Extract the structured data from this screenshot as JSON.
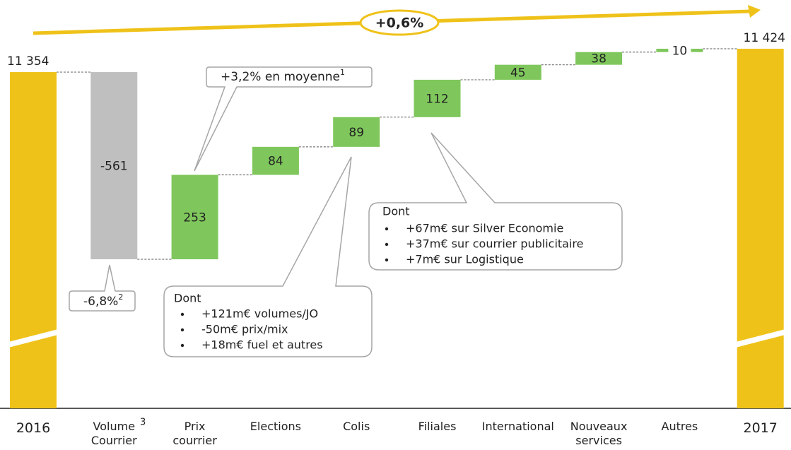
{
  "chart_data": {
    "type": "waterfall",
    "categories": [
      "2016",
      "Volume Courrier",
      "Prix courrier",
      "Elections",
      "Colis",
      "Filiales",
      "International",
      "Nouveaux services",
      "Autres",
      "2017"
    ],
    "values": [
      11354,
      -561,
      253,
      84,
      89,
      112,
      45,
      38,
      10,
      11424
    ],
    "value_labels": [
      "11 354",
      "-561",
      "253",
      "84",
      "89",
      "112",
      "45",
      "38",
      "10",
      "11 424"
    ],
    "measure": [
      "total",
      "relative",
      "relative",
      "relative",
      "relative",
      "relative",
      "relative",
      "relative",
      "relative",
      "total"
    ],
    "colors": {
      "total": "#efc21a",
      "decrease": "#bfbfbf",
      "increase": "#7fc75c"
    },
    "annotations": {
      "growth": "+0,6%",
      "volume_sup": "3",
      "price_note": {
        "text": "+3,2% en moyenne",
        "sup": "1"
      },
      "volume_note": {
        "text": "-6,8%",
        "sup": "2"
      },
      "colis_detail": {
        "title": "Dont",
        "lines": [
          "+121m€ volumes/JO",
          "-50m€ prix/mix",
          "+18m€ fuel et autres"
        ]
      },
      "filiales_detail": {
        "title": "Dont",
        "lines": [
          "+67m€ sur Silver Economie",
          "+37m€ sur courrier publicitaire",
          "+7m€ sur Logistique"
        ]
      }
    }
  }
}
